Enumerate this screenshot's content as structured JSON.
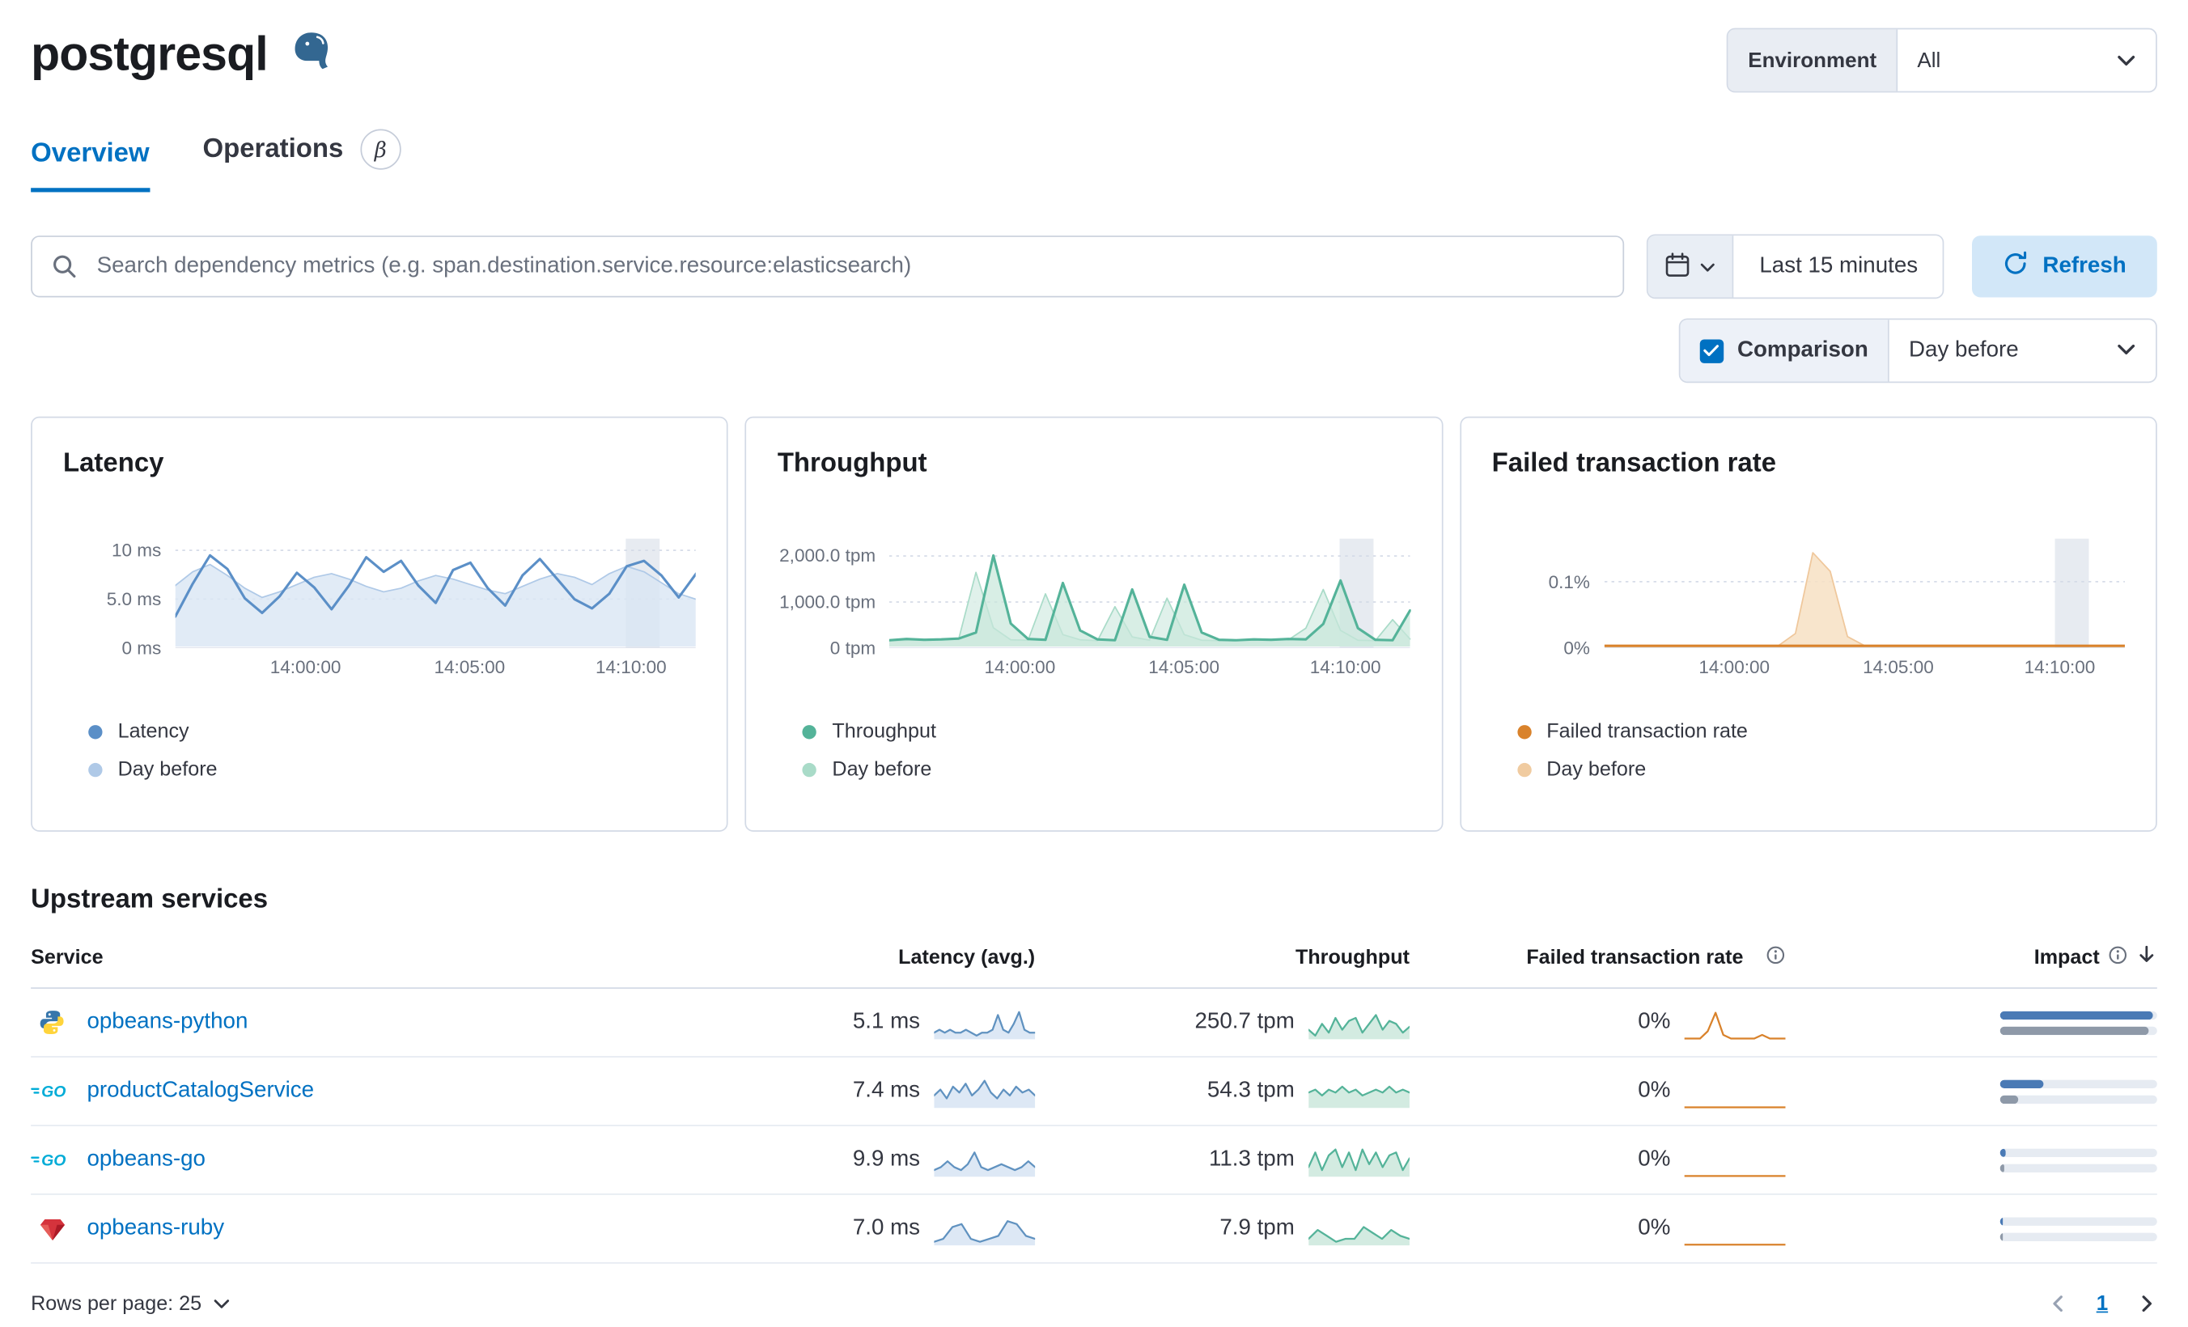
{
  "header": {
    "title": "postgresql",
    "environment_label": "Environment",
    "environment_value": "All"
  },
  "tabs": [
    {
      "label": "Overview",
      "active": true
    },
    {
      "label": "Operations",
      "beta": "β"
    }
  ],
  "search": {
    "placeholder": "Search dependency metrics (e.g. span.destination.service.resource:elasticsearch)"
  },
  "time": {
    "range_label": "Last 15 minutes",
    "refresh_label": "Refresh"
  },
  "comparison": {
    "label": "Comparison",
    "checked": true,
    "value": "Day before"
  },
  "charts": [
    {
      "title": "Latency",
      "type": "line",
      "vw": 410,
      "vh": 78,
      "ymax": 11.2,
      "yticks": [
        {
          "label": "10 ms",
          "v": 10
        },
        {
          "label": "5.0 ms",
          "v": 5
        },
        {
          "label": "0 ms",
          "v": 0
        }
      ],
      "xticks": [
        {
          "label": "14:00:00",
          "f": 0.25
        },
        {
          "label": "14:05:00",
          "f": 0.565
        },
        {
          "label": "14:10:00",
          "f": 0.875
        }
      ],
      "band": [
        0.865,
        0.93
      ],
      "legend": [
        {
          "label": "Latency",
          "color": "#5B8FC7"
        },
        {
          "label": "Day before",
          "color": "#AFC9E7"
        }
      ],
      "series": [
        {
          "name": "Day before",
          "fill": "#D9E6F4",
          "opacity": 0.8,
          "color": "#AFC9E7",
          "w": 1,
          "values": [
            6.6,
            8.1,
            8.9,
            7.7,
            6.3,
            5.3,
            5.9,
            6.7,
            7.5,
            7.9,
            7.3,
            6.5,
            5.9,
            6.3,
            7.1,
            7.7,
            7.3,
            6.7,
            6.1,
            5.7,
            6.5,
            7.3,
            7.9,
            7.5,
            6.7,
            7.9,
            8.7,
            8.1,
            6.9,
            5.7,
            5.1
          ]
        },
        {
          "name": "Latency",
          "color": "#5B8FC7",
          "w": 1.8,
          "values": [
            3.2,
            6.8,
            9.9,
            8.4,
            5.2,
            3.6,
            5.4,
            8.0,
            6.4,
            4.0,
            6.6,
            9.7,
            8.1,
            9.3,
            6.6,
            4.7,
            8.3,
            9.1,
            6.3,
            4.4,
            7.7,
            9.5,
            7.3,
            5.1,
            4.1,
            5.7,
            8.7,
            9.3,
            7.7,
            5.3,
            7.9
          ]
        }
      ]
    },
    {
      "title": "Throughput",
      "type": "area",
      "vw": 410,
      "vh": 78,
      "ymax": 2380,
      "yticks": [
        {
          "label": "2,000.0 tpm",
          "v": 2000
        },
        {
          "label": "1,000.0 tpm",
          "v": 1000
        },
        {
          "label": "0 tpm",
          "v": 0
        }
      ],
      "xticks": [
        {
          "label": "14:00:00",
          "f": 0.25
        },
        {
          "label": "14:05:00",
          "f": 0.565
        },
        {
          "label": "14:10:00",
          "f": 0.875
        }
      ],
      "band": [
        0.865,
        0.93
      ],
      "legend": [
        {
          "label": "Throughput",
          "color": "#54B399"
        },
        {
          "label": "Day before",
          "color": "#A9DBC8"
        }
      ],
      "series": [
        {
          "name": "Day before",
          "fill": "#DBEFE7",
          "opacity": 0.85,
          "color": "#A9DBC8",
          "w": 1,
          "values": [
            110,
            130,
            150,
            140,
            160,
            1710,
            420,
            140,
            130,
            1210,
            260,
            140,
            120,
            910,
            210,
            130,
            1110,
            260,
            130,
            120,
            140,
            130,
            150,
            140,
            410,
            1310,
            360,
            130,
            120,
            610,
            160
          ]
        },
        {
          "name": "Throughput",
          "fill": "#C8E7DA",
          "opacity": 0.7,
          "color": "#54B399",
          "w": 1.8,
          "values": [
            130,
            160,
            140,
            150,
            170,
            310,
            2100,
            520,
            160,
            140,
            1460,
            360,
            150,
            130,
            1310,
            210,
            140,
            1420,
            310,
            140,
            130,
            150,
            140,
            160,
            150,
            510,
            1520,
            410,
            140,
            130,
            820
          ]
        }
      ]
    },
    {
      "title": "Failed transaction rate",
      "type": "line",
      "vw": 410,
      "vh": 78,
      "ymax": 0.165,
      "yticks": [
        {
          "label": "0.1%",
          "v": 0.1
        },
        {
          "label": "0%",
          "v": 0
        }
      ],
      "xticks": [
        {
          "label": "14:00:00",
          "f": 0.25
        },
        {
          "label": "14:05:00",
          "f": 0.565
        },
        {
          "label": "14:10:00",
          "f": 0.875
        }
      ],
      "band": [
        0.865,
        0.93
      ],
      "legend": [
        {
          "label": "Failed transaction rate",
          "color": "#D9822B"
        },
        {
          "label": "Day before",
          "color": "#F0CBA0"
        }
      ],
      "series": [
        {
          "name": "Day before",
          "fill": "#F7E0C3",
          "opacity": 0.85,
          "color": "#EFC79B",
          "w": 1,
          "values": [
            0,
            0,
            0,
            0,
            0,
            0,
            0,
            0,
            0,
            0,
            0,
            0.02,
            0.15,
            0.12,
            0.015,
            0,
            0,
            0,
            0,
            0,
            0,
            0,
            0,
            0,
            0,
            0,
            0,
            0,
            0,
            0,
            0
          ]
        },
        {
          "name": "Failed transaction rate",
          "color": "#D9822B",
          "w": 1.8,
          "values": [
            0,
            0,
            0,
            0,
            0,
            0,
            0,
            0,
            0,
            0,
            0,
            0,
            0,
            0,
            0,
            0,
            0,
            0,
            0,
            0,
            0,
            0,
            0,
            0,
            0,
            0,
            0,
            0,
            0,
            0,
            0
          ]
        }
      ]
    }
  ],
  "upstream": {
    "heading": "Upstream services",
    "columns": [
      "Service",
      "Latency (avg.)",
      "Throughput",
      "Failed transaction rate",
      "Impact"
    ],
    "impact_colors": {
      "current": "#4A7AB5",
      "previous": "#8E99A8",
      "track": "#E6EBF2"
    },
    "rows": [
      {
        "service": "opbeans-python",
        "icon": "python",
        "latency": "5.1 ms",
        "throughput": "250.7 tpm",
        "ftr": "0%",
        "impact": {
          "current": 97,
          "previous": 95
        },
        "sparks": {
          "latency": {
            "vw": 72,
            "vh": 26,
            "ymax": 10,
            "series": [
              {
                "fill": "#D7E4F3",
                "color": "#6092C0",
                "w": 1.3,
                "values": [
                  2,
                  3,
                  2,
                  3,
                  2,
                  2,
                  3,
                  2,
                  1,
                  2,
                  2,
                  3,
                  8,
                  3,
                  2,
                  5,
                  9,
                  3,
                  2,
                  2
                ]
              }
            ]
          },
          "throughput": {
            "vw": 72,
            "vh": 26,
            "ymax": 10,
            "series": [
              {
                "fill": "#CBE8DC",
                "color": "#54B399",
                "w": 1.3,
                "values": [
                  3,
                  1,
                  5,
                  2,
                  7,
                  3,
                  6,
                  7,
                  2,
                  5,
                  8,
                  3,
                  6,
                  5,
                  2,
                  4
                ]
              }
            ]
          },
          "ftr": {
            "vw": 72,
            "vh": 26,
            "ymax": 8,
            "series": [
              {
                "color": "#D9822B",
                "w": 1.3,
                "values": [
                  0,
                  0,
                  0,
                  2,
                  7,
                  1,
                  0,
                  0,
                  0,
                  0,
                  1,
                  0,
                  0,
                  0
                ]
              }
            ]
          }
        }
      },
      {
        "service": "productCatalogService",
        "icon": "go",
        "latency": "7.4 ms",
        "throughput": "54.3 tpm",
        "ftr": "0%",
        "impact": {
          "current": 28,
          "previous": 12
        },
        "sparks": {
          "latency": {
            "vw": 72,
            "vh": 26,
            "ymax": 10,
            "series": [
              {
                "fill": "#D7E4F3",
                "color": "#6092C0",
                "w": 1.3,
                "values": [
                  4,
                  6,
                  3,
                  7,
                  5,
                  8,
                  4,
                  6,
                  9,
                  5,
                  3,
                  6,
                  4,
                  7,
                  5,
                  6,
                  4
                ]
              }
            ]
          },
          "throughput": {
            "vw": 72,
            "vh": 26,
            "ymax": 10,
            "series": [
              {
                "fill": "#CBE8DC",
                "color": "#54B399",
                "w": 1.3,
                "values": [
                  5,
                  6,
                  4,
                  6,
                  5,
                  7,
                  5,
                  6,
                  4,
                  5,
                  6,
                  5,
                  7,
                  5,
                  6,
                  5
                ]
              }
            ]
          },
          "ftr": {
            "vw": 72,
            "vh": 26,
            "ymax": 8,
            "series": [
              {
                "color": "#D9822B",
                "w": 1.3,
                "values": [
                  0,
                  0,
                  0,
                  0,
                  0,
                  0,
                  0,
                  0,
                  0,
                  0,
                  0,
                  0,
                  0,
                  0
                ]
              }
            ]
          }
        }
      },
      {
        "service": "opbeans-go",
        "icon": "go",
        "latency": "9.9 ms",
        "throughput": "11.3 tpm",
        "ftr": "0%",
        "impact": {
          "current": 4,
          "previous": 3
        },
        "sparks": {
          "latency": {
            "vw": 72,
            "vh": 26,
            "ymax": 10,
            "series": [
              {
                "fill": "#D7E4F3",
                "color": "#6092C0",
                "w": 1.3,
                "values": [
                  2,
                  3,
                  5,
                  3,
                  2,
                  4,
                  8,
                  3,
                  2,
                  3,
                  4,
                  3,
                  2,
                  3,
                  5,
                  3
                ]
              }
            ]
          },
          "throughput": {
            "vw": 72,
            "vh": 26,
            "ymax": 10,
            "series": [
              {
                "fill": "#CBE8DC",
                "color": "#54B399",
                "w": 1.3,
                "values": [
                  3,
                  8,
                  2,
                  7,
                  9,
                  3,
                  8,
                  2,
                  9,
                  4,
                  8,
                  3,
                  7,
                  8,
                  2,
                  6
                ]
              }
            ]
          },
          "ftr": {
            "vw": 72,
            "vh": 26,
            "ymax": 8,
            "series": [
              {
                "color": "#D9822B",
                "w": 1.3,
                "values": [
                  0,
                  0,
                  0,
                  0,
                  0,
                  0,
                  0,
                  0,
                  0,
                  0,
                  0,
                  0
                ]
              }
            ]
          }
        }
      },
      {
        "service": "opbeans-ruby",
        "icon": "ruby",
        "latency": "7.0 ms",
        "throughput": "7.9 tpm",
        "ftr": "0%",
        "impact": {
          "current": 2,
          "previous": 2
        },
        "sparks": {
          "latency": {
            "vw": 72,
            "vh": 26,
            "ymax": 10,
            "series": [
              {
                "fill": "#D7E4F3",
                "color": "#6092C0",
                "w": 1.3,
                "values": [
                  1,
                  2,
                  6,
                  7,
                  2,
                  1,
                  2,
                  3,
                  8,
                  7,
                  3,
                  2
                ]
              }
            ]
          },
          "throughput": {
            "vw": 72,
            "vh": 26,
            "ymax": 10,
            "series": [
              {
                "fill": "#CBE8DC",
                "color": "#54B399",
                "w": 1.3,
                "values": [
                  2,
                  5,
                  3,
                  1,
                  2,
                  2,
                  6,
                  4,
                  2,
                  5,
                  3,
                  2
                ]
              }
            ]
          },
          "ftr": {
            "vw": 72,
            "vh": 26,
            "ymax": 8,
            "series": [
              {
                "color": "#D9822B",
                "w": 1.3,
                "values": [
                  0,
                  0,
                  0,
                  0,
                  0,
                  0,
                  0,
                  0,
                  0,
                  0,
                  0,
                  0
                ]
              }
            ]
          }
        }
      }
    ]
  },
  "pagination": {
    "rows_per_page_label": "Rows per page: 25",
    "page": "1"
  }
}
